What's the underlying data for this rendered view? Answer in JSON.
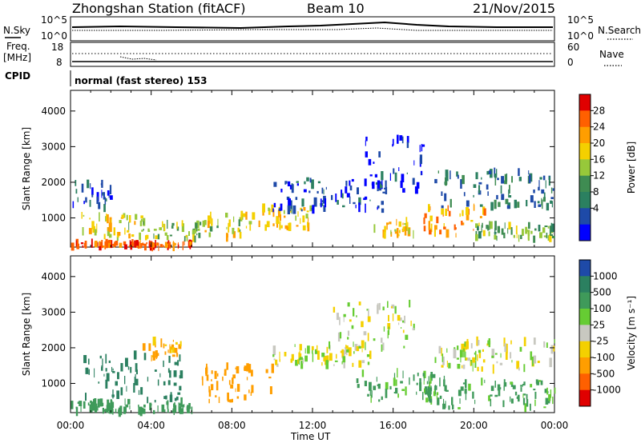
{
  "header": {
    "title": "Zhongshan Station (fitACF)",
    "beam": "Beam 10",
    "date": "21/Nov/2015"
  },
  "top_panels": {
    "nsky_label": "N.Sky",
    "nsky_ticks": [
      "10^5",
      "10^0"
    ],
    "nsearch_label": "N.Search",
    "nsearch_ticks": [
      "10^5",
      "10^0"
    ],
    "freq_label": "Freq.",
    "freq_unit": "[MHz]",
    "freq_ticks": [
      "18",
      "8"
    ],
    "nave_label": "Nave",
    "nave_ticks": [
      "60",
      "0"
    ],
    "cpid_label": "CPID",
    "cpid_text": "normal (fast stereo) 153"
  },
  "chart_data": [
    {
      "type": "heatmap",
      "panel": "power",
      "ylabel": "Slant Range [km]",
      "xlabel": "",
      "x_ticks": [
        "00:00",
        "04:00",
        "08:00",
        "12:00",
        "16:00",
        "20:00",
        "00:00"
      ],
      "xlim": [
        0,
        24
      ],
      "ylim": [
        180,
        4580
      ],
      "y_ticks": [
        1000,
        2000,
        3000,
        4000
      ],
      "colorbar": {
        "label": "Power [dB]",
        "ticks": [
          "28",
          "24",
          "20",
          "16",
          "12",
          "8",
          "4"
        ],
        "colors": [
          "#e00000",
          "#ff6000",
          "#ff9e00",
          "#f4d000",
          "#97c83a",
          "#3f8c52",
          "#2b8060",
          "#1e4aa8",
          "#0000ff"
        ]
      },
      "bands": [
        {
          "t": [
            0.0,
            6.0
          ],
          "r": [
            180,
            300
          ],
          "level": 26
        },
        {
          "t": [
            0.5,
            3.5
          ],
          "r": [
            400,
            1100
          ],
          "level": 18
        },
        {
          "t": [
            3.5,
            6.5
          ],
          "r": [
            400,
            900
          ],
          "level": 16
        },
        {
          "t": [
            6.5,
            8.5
          ],
          "r": [
            450,
            1100
          ],
          "level": 18
        },
        {
          "t": [
            8.5,
            12.0
          ],
          "r": [
            700,
            1300
          ],
          "level": 20
        },
        {
          "t": [
            10.0,
            15.5
          ],
          "r": [
            1200,
            2100
          ],
          "level": 6
        },
        {
          "t": [
            14.5,
            17.5
          ],
          "r": [
            1700,
            3300
          ],
          "level": 5
        },
        {
          "t": [
            15.0,
            17.0
          ],
          "r": [
            500,
            900
          ],
          "level": 20
        },
        {
          "t": [
            17.5,
            20.5
          ],
          "r": [
            500,
            1400
          ],
          "level": 22
        },
        {
          "t": [
            18.0,
            24.0
          ],
          "r": [
            1300,
            2300
          ],
          "level": 9
        },
        {
          "t": [
            20.0,
            24.0
          ],
          "r": [
            400,
            800
          ],
          "level": 14
        },
        {
          "t": [
            0.0,
            2.0
          ],
          "r": [
            1200,
            2000
          ],
          "level": 7
        }
      ]
    },
    {
      "type": "heatmap",
      "panel": "velocity",
      "ylabel": "Slant Range [km]",
      "xlabel": "Time UT",
      "x_ticks": [
        "00:00",
        "04:00",
        "08:00",
        "12:00",
        "16:00",
        "20:00",
        "00:00"
      ],
      "xlim": [
        0,
        24
      ],
      "ylim": [
        180,
        4580
      ],
      "y_ticks": [
        1000,
        2000,
        3000,
        4000
      ],
      "colorbar": {
        "label": "Velocity [m s⁻¹]",
        "ticks": [
          "1000",
          "500",
          "100",
          "25",
          "-25",
          "-100",
          "-500",
          "-1000"
        ],
        "colors": [
          "#1e4aa8",
          "#2b8060",
          "#3f9a5a",
          "#66cc33",
          "#c8c8c0",
          "#f4d000",
          "#ff9e00",
          "#ff6000",
          "#e00000"
        ]
      },
      "bands": [
        {
          "t": [
            0.0,
            6.0
          ],
          "r": [
            180,
            500
          ],
          "level": 200
        },
        {
          "t": [
            0.5,
            5.5
          ],
          "r": [
            500,
            1800
          ],
          "level": 700
        },
        {
          "t": [
            6.5,
            10.0
          ],
          "r": [
            500,
            1500
          ],
          "level": -200
        },
        {
          "t": [
            10.0,
            15.0
          ],
          "r": [
            1500,
            2100
          ],
          "level": 0
        },
        {
          "t": [
            13.0,
            17.0
          ],
          "r": [
            1900,
            3300
          ],
          "level": 10
        },
        {
          "t": [
            14.0,
            18.0
          ],
          "r": [
            500,
            1300
          ],
          "level": 150
        },
        {
          "t": [
            17.5,
            24.0
          ],
          "r": [
            300,
            1100
          ],
          "level": 150
        },
        {
          "t": [
            18.0,
            24.0
          ],
          "r": [
            1400,
            2200
          ],
          "level": 0
        },
        {
          "t": [
            3.5,
            5.5
          ],
          "r": [
            1700,
            2200
          ],
          "level": -150
        }
      ]
    }
  ]
}
